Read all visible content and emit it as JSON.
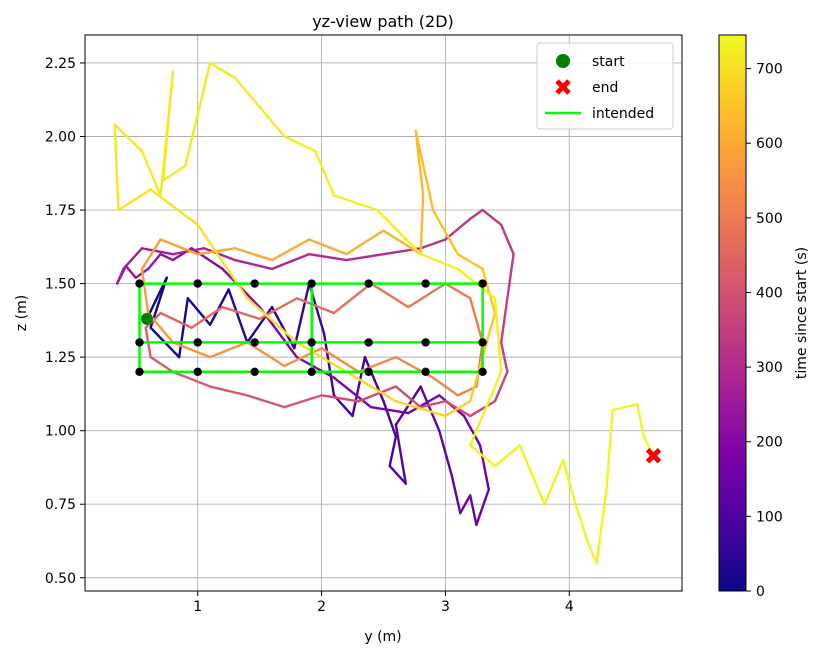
{
  "chart_data": {
    "type": "line",
    "title": "yz-view path (2D)",
    "xlabel": "y (m)",
    "ylabel": "z (m)",
    "xlim": [
      0.09,
      4.91
    ],
    "ylim": [
      0.455,
      2.345
    ],
    "xticks": [
      1,
      2,
      3,
      4
    ],
    "yticks": [
      0.5,
      0.75,
      1.0,
      1.25,
      1.5,
      1.75,
      2.0,
      2.25
    ],
    "xtick_labels": [
      "1",
      "2",
      "3",
      "4"
    ],
    "ytick_labels": [
      "0.50",
      "0.75",
      "1.00",
      "1.25",
      "1.50",
      "1.75",
      "2.00",
      "2.25"
    ],
    "grid": true,
    "legend": {
      "placement": "top-right",
      "entries": [
        {
          "label": "start",
          "marker": "circle",
          "color": "#008000"
        },
        {
          "label": "end",
          "marker": "x",
          "color": "#ff0000"
        },
        {
          "label": "intended",
          "marker": "line",
          "color": "#00ff00"
        }
      ]
    },
    "colorbar": {
      "label": "time since start (s)",
      "range": [
        0,
        745
      ],
      "ticks": [
        0,
        100,
        200,
        300,
        400,
        500,
        600,
        700
      ],
      "tick_labels": [
        "0",
        "100",
        "200",
        "300",
        "400",
        "500",
        "600",
        "700"
      ],
      "colormap": "plasma"
    },
    "start": {
      "y": 0.59,
      "z": 1.38
    },
    "end": {
      "y": 4.68,
      "z": 0.915
    },
    "intended": {
      "waypoint_y": [
        0.53,
        1.0,
        1.46,
        1.92,
        2.38,
        2.84,
        3.3
      ],
      "rows_z": [
        1.5,
        1.3,
        1.2
      ],
      "path": [
        [
          0.53,
          1.5
        ],
        [
          1.0,
          1.5
        ],
        [
          1.46,
          1.5
        ],
        [
          1.92,
          1.5
        ],
        [
          2.38,
          1.5
        ],
        [
          2.84,
          1.5
        ],
        [
          3.3,
          1.5
        ],
        [
          3.3,
          1.3
        ],
        [
          2.84,
          1.3
        ],
        [
          2.38,
          1.3
        ],
        [
          1.92,
          1.3
        ],
        [
          1.46,
          1.3
        ],
        [
          1.0,
          1.3
        ],
        [
          0.53,
          1.3
        ],
        [
          0.53,
          1.2
        ],
        [
          1.0,
          1.2
        ],
        [
          1.46,
          1.2
        ],
        [
          1.92,
          1.2
        ],
        [
          2.38,
          1.2
        ],
        [
          2.84,
          1.2
        ],
        [
          3.3,
          1.2
        ],
        [
          3.3,
          1.5
        ],
        [
          1.92,
          1.5
        ],
        [
          1.92,
          1.2
        ],
        [
          0.53,
          1.2
        ],
        [
          0.53,
          1.5
        ]
      ]
    },
    "trajectory": [
      [
        0.59,
        1.38,
        0
      ],
      [
        0.75,
        1.52,
        6
      ],
      [
        0.62,
        1.35,
        12
      ],
      [
        0.85,
        1.25,
        18
      ],
      [
        0.92,
        1.45,
        24
      ],
      [
        1.1,
        1.36,
        30
      ],
      [
        1.25,
        1.48,
        36
      ],
      [
        1.4,
        1.3,
        42
      ],
      [
        1.6,
        1.42,
        48
      ],
      [
        1.78,
        1.28,
        54
      ],
      [
        1.9,
        1.5,
        60
      ],
      [
        2.02,
        1.33,
        66
      ],
      [
        2.1,
        1.12,
        72
      ],
      [
        2.25,
        1.05,
        78
      ],
      [
        2.35,
        1.25,
        84
      ],
      [
        2.5,
        1.1,
        90
      ],
      [
        2.6,
        0.98,
        96
      ],
      [
        2.55,
        0.88,
        102
      ],
      [
        2.68,
        0.82,
        108
      ],
      [
        2.6,
        1.02,
        114
      ],
      [
        2.8,
        1.15,
        120
      ],
      [
        2.95,
        1.0,
        126
      ],
      [
        3.05,
        0.85,
        132
      ],
      [
        3.12,
        0.72,
        138
      ],
      [
        3.2,
        0.78,
        144
      ],
      [
        3.25,
        0.68,
        150
      ],
      [
        3.35,
        0.8,
        156
      ],
      [
        3.28,
        0.95,
        162
      ],
      [
        3.15,
        1.05,
        168
      ],
      [
        2.95,
        1.12,
        174
      ],
      [
        2.7,
        1.06,
        180
      ],
      [
        2.4,
        1.08,
        186
      ],
      [
        2.1,
        1.18,
        192
      ],
      [
        1.8,
        1.25,
        198
      ],
      [
        1.5,
        1.42,
        204
      ],
      [
        1.2,
        1.55,
        210
      ],
      [
        0.95,
        1.62,
        216
      ],
      [
        0.8,
        1.58,
        222
      ],
      [
        0.7,
        1.6,
        228
      ],
      [
        0.6,
        1.55,
        234
      ],
      [
        0.5,
        1.52,
        240
      ],
      [
        0.42,
        1.56,
        246
      ],
      [
        0.35,
        1.5,
        252
      ],
      [
        0.4,
        1.55,
        258
      ],
      [
        0.55,
        1.62,
        264
      ],
      [
        0.8,
        1.6,
        270
      ],
      [
        1.05,
        1.62,
        276
      ],
      [
        1.3,
        1.58,
        282
      ],
      [
        1.6,
        1.55,
        288
      ],
      [
        1.9,
        1.6,
        294
      ],
      [
        2.2,
        1.58,
        300
      ],
      [
        2.5,
        1.6,
        306
      ],
      [
        2.8,
        1.62,
        312
      ],
      [
        3.0,
        1.65,
        318
      ],
      [
        3.2,
        1.72,
        324
      ],
      [
        3.3,
        1.75,
        330
      ],
      [
        3.45,
        1.7,
        336
      ],
      [
        3.55,
        1.6,
        342
      ],
      [
        3.5,
        1.45,
        348
      ],
      [
        3.45,
        1.3,
        354
      ],
      [
        3.5,
        1.2,
        360
      ],
      [
        3.4,
        1.1,
        366
      ],
      [
        3.2,
        1.05,
        372
      ],
      [
        3.0,
        1.1,
        378
      ],
      [
        2.8,
        1.08,
        384
      ],
      [
        2.6,
        1.15,
        390
      ],
      [
        2.3,
        1.1,
        396
      ],
      [
        2.0,
        1.12,
        402
      ],
      [
        1.7,
        1.08,
        408
      ],
      [
        1.4,
        1.12,
        414
      ],
      [
        1.1,
        1.15,
        420
      ],
      [
        0.8,
        1.2,
        426
      ],
      [
        0.62,
        1.25,
        432
      ],
      [
        0.58,
        1.35,
        438
      ],
      [
        0.7,
        1.4,
        444
      ],
      [
        0.95,
        1.35,
        450
      ],
      [
        1.2,
        1.42,
        456
      ],
      [
        1.5,
        1.38,
        462
      ],
      [
        1.8,
        1.45,
        468
      ],
      [
        2.1,
        1.4,
        474
      ],
      [
        2.4,
        1.5,
        480
      ],
      [
        2.7,
        1.42,
        486
      ],
      [
        3.0,
        1.5,
        492
      ],
      [
        3.2,
        1.45,
        498
      ],
      [
        3.3,
        1.3,
        504
      ],
      [
        3.25,
        1.15,
        510
      ],
      [
        3.1,
        1.12,
        516
      ],
      [
        2.9,
        1.18,
        522
      ],
      [
        2.6,
        1.25,
        528
      ],
      [
        2.3,
        1.2,
        534
      ],
      [
        2.0,
        1.28,
        540
      ],
      [
        1.7,
        1.22,
        546
      ],
      [
        1.4,
        1.3,
        552
      ],
      [
        1.1,
        1.25,
        558
      ],
      [
        0.8,
        1.3,
        564
      ],
      [
        0.6,
        1.4,
        570
      ],
      [
        0.55,
        1.55,
        576
      ],
      [
        0.7,
        1.65,
        582
      ],
      [
        1.0,
        1.6,
        588
      ],
      [
        1.3,
        1.62,
        594
      ],
      [
        1.6,
        1.58,
        600
      ],
      [
        1.9,
        1.65,
        606
      ],
      [
        2.2,
        1.6,
        612
      ],
      [
        2.5,
        1.68,
        618
      ],
      [
        2.8,
        1.6,
        624
      ],
      [
        2.82,
        1.8,
        630
      ],
      [
        2.76,
        2.02,
        636
      ],
      [
        2.9,
        1.75,
        642
      ],
      [
        3.1,
        1.6,
        648
      ],
      [
        3.3,
        1.55,
        654
      ],
      [
        3.4,
        1.4,
        660
      ],
      [
        3.3,
        1.25,
        666
      ],
      [
        3.2,
        1.1,
        672
      ],
      [
        3.0,
        1.05,
        678
      ],
      [
        2.6,
        1.1,
        684
      ],
      [
        2.2,
        1.2,
        690
      ],
      [
        1.8,
        1.3,
        696
      ],
      [
        1.4,
        1.45,
        702
      ],
      [
        1.0,
        1.7,
        706
      ],
      [
        0.62,
        1.82,
        709
      ],
      [
        0.36,
        1.75,
        711
      ],
      [
        0.33,
        2.04,
        713
      ],
      [
        0.55,
        1.95,
        715
      ],
      [
        0.7,
        1.8,
        716
      ],
      [
        0.8,
        2.22,
        717
      ],
      [
        0.72,
        1.85,
        718
      ],
      [
        0.9,
        1.9,
        719
      ],
      [
        1.1,
        2.25,
        720
      ],
      [
        1.3,
        2.2,
        721
      ],
      [
        1.5,
        2.1,
        722
      ],
      [
        1.7,
        2.0,
        723
      ],
      [
        1.95,
        1.95,
        724
      ],
      [
        2.1,
        1.8,
        725
      ],
      [
        2.45,
        1.75,
        726
      ],
      [
        2.8,
        1.6,
        727
      ],
      [
        3.1,
        1.55,
        728
      ],
      [
        3.4,
        1.45,
        729
      ],
      [
        3.45,
        1.2,
        730
      ],
      [
        3.2,
        0.95,
        731
      ],
      [
        3.4,
        0.88,
        732
      ],
      [
        3.6,
        0.95,
        733
      ],
      [
        3.8,
        0.75,
        734
      ],
      [
        3.95,
        0.9,
        735
      ],
      [
        4.05,
        0.75,
        736
      ],
      [
        4.15,
        0.62,
        737
      ],
      [
        4.22,
        0.55,
        738
      ],
      [
        4.3,
        0.8,
        739
      ],
      [
        4.35,
        1.07,
        740
      ],
      [
        4.55,
        1.09,
        741
      ],
      [
        4.6,
        0.98,
        742
      ],
      [
        4.68,
        0.915,
        745
      ]
    ]
  }
}
